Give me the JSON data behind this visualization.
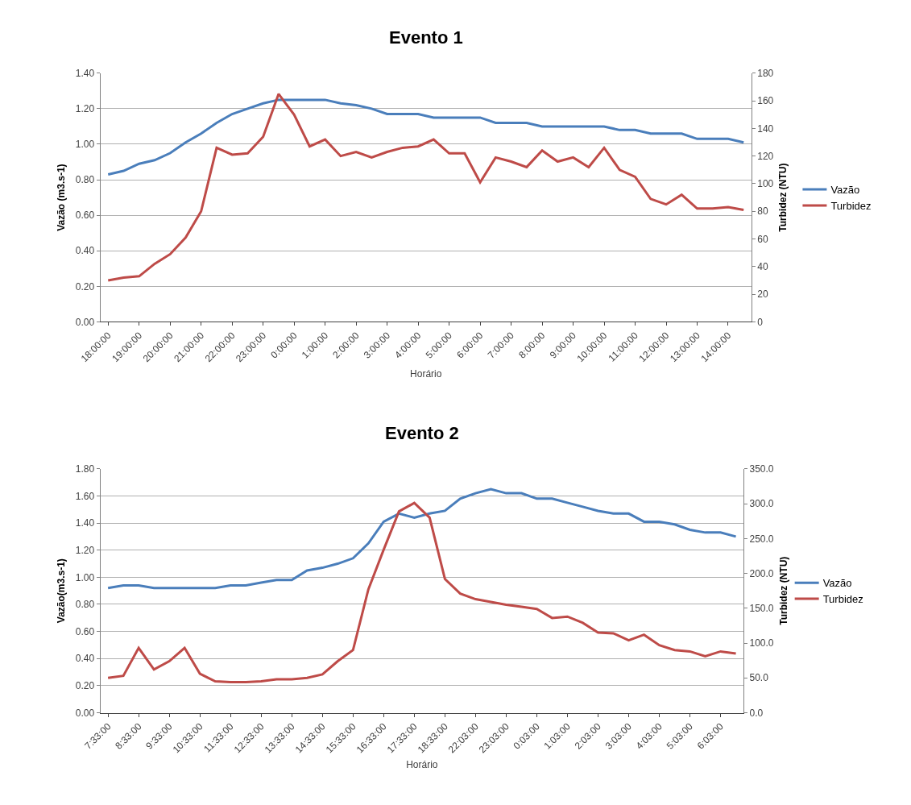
{
  "chart_data": [
    {
      "type": "line",
      "title": "Evento 1",
      "xlabel": "Horário",
      "ylabel": "Vazão (m3.s-1)",
      "y2label": "Turbidez (NTU)",
      "categories": [
        "18:00:00",
        null,
        "19:00:00",
        null,
        "20:00:00",
        null,
        "21:00:00",
        null,
        "22:00:00",
        null,
        "23:00:00",
        null,
        "0:00:00",
        null,
        "1:00:00",
        null,
        "2:00:00",
        null,
        "3:00:00",
        null,
        "4:00:00",
        null,
        "5:00:00",
        null,
        "6:00:00",
        null,
        "7:00:00",
        null,
        "8:00:00",
        null,
        "9:00:00",
        null,
        "10:00:00",
        null,
        "11:00:00",
        null,
        "12:00:00",
        null,
        "13:00:00",
        null,
        "14:00:00",
        null
      ],
      "series": [
        {
          "name": "Vazão",
          "color": "#4a7ebb",
          "values": [
            0.83,
            0.85,
            0.89,
            0.91,
            0.95,
            1.01,
            1.06,
            1.12,
            1.17,
            1.2,
            1.23,
            1.25,
            1.25,
            1.25,
            1.25,
            1.23,
            1.22,
            1.2,
            1.17,
            1.17,
            1.17,
            1.15,
            1.15,
            1.15,
            1.15,
            1.12,
            1.12,
            1.12,
            1.1,
            1.1,
            1.1,
            1.1,
            1.1,
            1.08,
            1.08,
            1.06,
            1.06,
            1.06,
            1.03,
            1.03,
            1.03,
            1.01
          ]
        },
        {
          "name": "Turbidez",
          "color": "#be4b48",
          "axis": "y2",
          "values": [
            30,
            32,
            33,
            42,
            49,
            61,
            80,
            126,
            121,
            122,
            134,
            165,
            150,
            127,
            132,
            120,
            123,
            119,
            123,
            126,
            127,
            132,
            122,
            122,
            101,
            119,
            116,
            112,
            124,
            116,
            119,
            112,
            126,
            110,
            105,
            89,
            85,
            92,
            82,
            82,
            83,
            81
          ]
        }
      ],
      "ylim": [
        0,
        1.4
      ],
      "yticks": [
        {
          "value": 0,
          "label": "0.00"
        },
        {
          "value": 0.2,
          "label": "0.20"
        },
        {
          "value": 0.4,
          "label": "0.40"
        },
        {
          "value": 0.6,
          "label": "0.60"
        },
        {
          "value": 0.8,
          "label": "0.80"
        },
        {
          "value": 1.0,
          "label": "1.00"
        },
        {
          "value": 1.2,
          "label": "1.20"
        },
        {
          "value": 1.4,
          "label": "1.40"
        }
      ],
      "y2lim": [
        0,
        180
      ],
      "y2ticks": [
        0,
        20,
        40,
        60,
        80,
        100,
        120,
        140,
        160,
        180
      ],
      "grid": "y",
      "legend": "right",
      "line_style": "solid",
      "marker": "none"
    },
    {
      "type": "line",
      "title": "Evento 2",
      "xlabel": "Horário",
      "ylabel": "Vazão(m3.s-1)",
      "y2label": "Turbidez (NTU)",
      "categories": [
        "7:33:00",
        null,
        "8:33:00",
        null,
        "9:33:00",
        null,
        "10:33:00",
        null,
        "11:33:00",
        null,
        "12:33:00",
        null,
        "13:33:00",
        null,
        "14:33:00",
        null,
        "15:33:00",
        null,
        "16:33:00",
        null,
        "17:33:00",
        null,
        "18:33:00",
        null,
        "22:03:00",
        null,
        "23:03:00",
        null,
        "0:03:00",
        null,
        "1:03:00",
        null,
        "2:03:00",
        null,
        "3:03:00",
        null,
        "4:03:00",
        null,
        "5:03:00",
        null,
        "6:03:00",
        null
      ],
      "series": [
        {
          "name": "Vazão",
          "color": "#4a7ebb",
          "values": [
            0.92,
            0.94,
            0.94,
            0.92,
            0.92,
            0.92,
            0.92,
            0.92,
            0.94,
            0.94,
            0.96,
            0.98,
            0.98,
            1.05,
            1.07,
            1.1,
            1.14,
            1.25,
            1.41,
            1.47,
            1.44,
            1.47,
            1.49,
            1.58,
            1.62,
            1.65,
            1.62,
            1.62,
            1.58,
            1.58,
            1.55,
            1.52,
            1.49,
            1.47,
            1.47,
            1.41,
            1.41,
            1.39,
            1.35,
            1.33,
            1.33,
            1.3
          ]
        },
        {
          "name": "Turbidez",
          "color": "#be4b48",
          "axis": "y2",
          "values": [
            50,
            53,
            93,
            62,
            74,
            93,
            56,
            45,
            44,
            44,
            45,
            48,
            48,
            50,
            55,
            74,
            90,
            177,
            234,
            289,
            301,
            280,
            192,
            171,
            163,
            159,
            155,
            152,
            149,
            136,
            138,
            129,
            115,
            114,
            104,
            112,
            97,
            90,
            88,
            81,
            88,
            85
          ]
        }
      ],
      "ylim": [
        0,
        1.8
      ],
      "yticks": [
        {
          "value": 0,
          "label": "0.00"
        },
        {
          "value": 0.2,
          "label": "0.20"
        },
        {
          "value": 0.4,
          "label": "0.40"
        },
        {
          "value": 0.6,
          "label": "0.60"
        },
        {
          "value": 0.8,
          "label": "0.80"
        },
        {
          "value": 1.0,
          "label": "1.00"
        },
        {
          "value": 1.2,
          "label": "1.20"
        },
        {
          "value": 1.4,
          "label": "1.40"
        },
        {
          "value": 1.6,
          "label": "1.60"
        },
        {
          "value": 1.8,
          "label": "1.80"
        }
      ],
      "y2lim": [
        0,
        350
      ],
      "y2ticks": [
        {
          "value": 0,
          "label": "0.0"
        },
        {
          "value": 50,
          "label": "50.0"
        },
        {
          "value": 100,
          "label": "100.0"
        },
        {
          "value": 150,
          "label": "150.0"
        },
        {
          "value": 200,
          "label": "200.0"
        },
        {
          "value": 250,
          "label": "250.0"
        },
        {
          "value": 300,
          "label": "300.0"
        },
        {
          "value": 350,
          "label": "350.0"
        }
      ],
      "grid": "y",
      "legend": "right",
      "line_style": "solid",
      "marker": "none"
    }
  ]
}
